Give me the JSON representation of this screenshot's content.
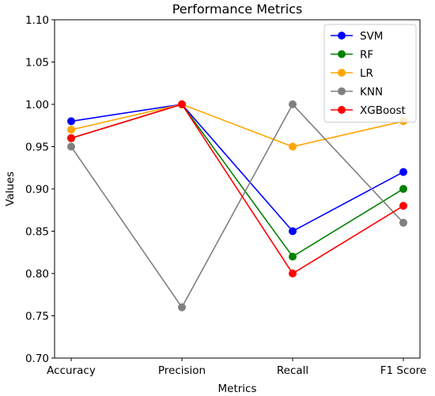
{
  "chart_data": {
    "type": "line",
    "title": "Performance Metrics",
    "xlabel": "Metrics",
    "ylabel": "Values",
    "categories": [
      "Accuracy",
      "Precision",
      "Recall",
      "F1 Score"
    ],
    "ylim": [
      0.7,
      1.1
    ],
    "yticks": [
      "0.70",
      "0.75",
      "0.80",
      "0.85",
      "0.90",
      "0.95",
      "1.00",
      "1.05",
      "1.10"
    ],
    "grid": false,
    "legend_position": "top-right",
    "series": [
      {
        "name": "SVM",
        "color": "#0000ff",
        "values": [
          0.98,
          1.0,
          0.85,
          0.92
        ]
      },
      {
        "name": "RF",
        "color": "#008000",
        "values": [
          0.96,
          1.0,
          0.82,
          0.9
        ]
      },
      {
        "name": "LR",
        "color": "#ffa500",
        "values": [
          0.97,
          1.0,
          0.95,
          0.98
        ]
      },
      {
        "name": "KNN",
        "color": "#808080",
        "values": [
          0.95,
          0.76,
          1.0,
          0.86
        ]
      },
      {
        "name": "XGBoost",
        "color": "#ff0000",
        "values": [
          0.96,
          1.0,
          0.8,
          0.88
        ]
      }
    ]
  }
}
